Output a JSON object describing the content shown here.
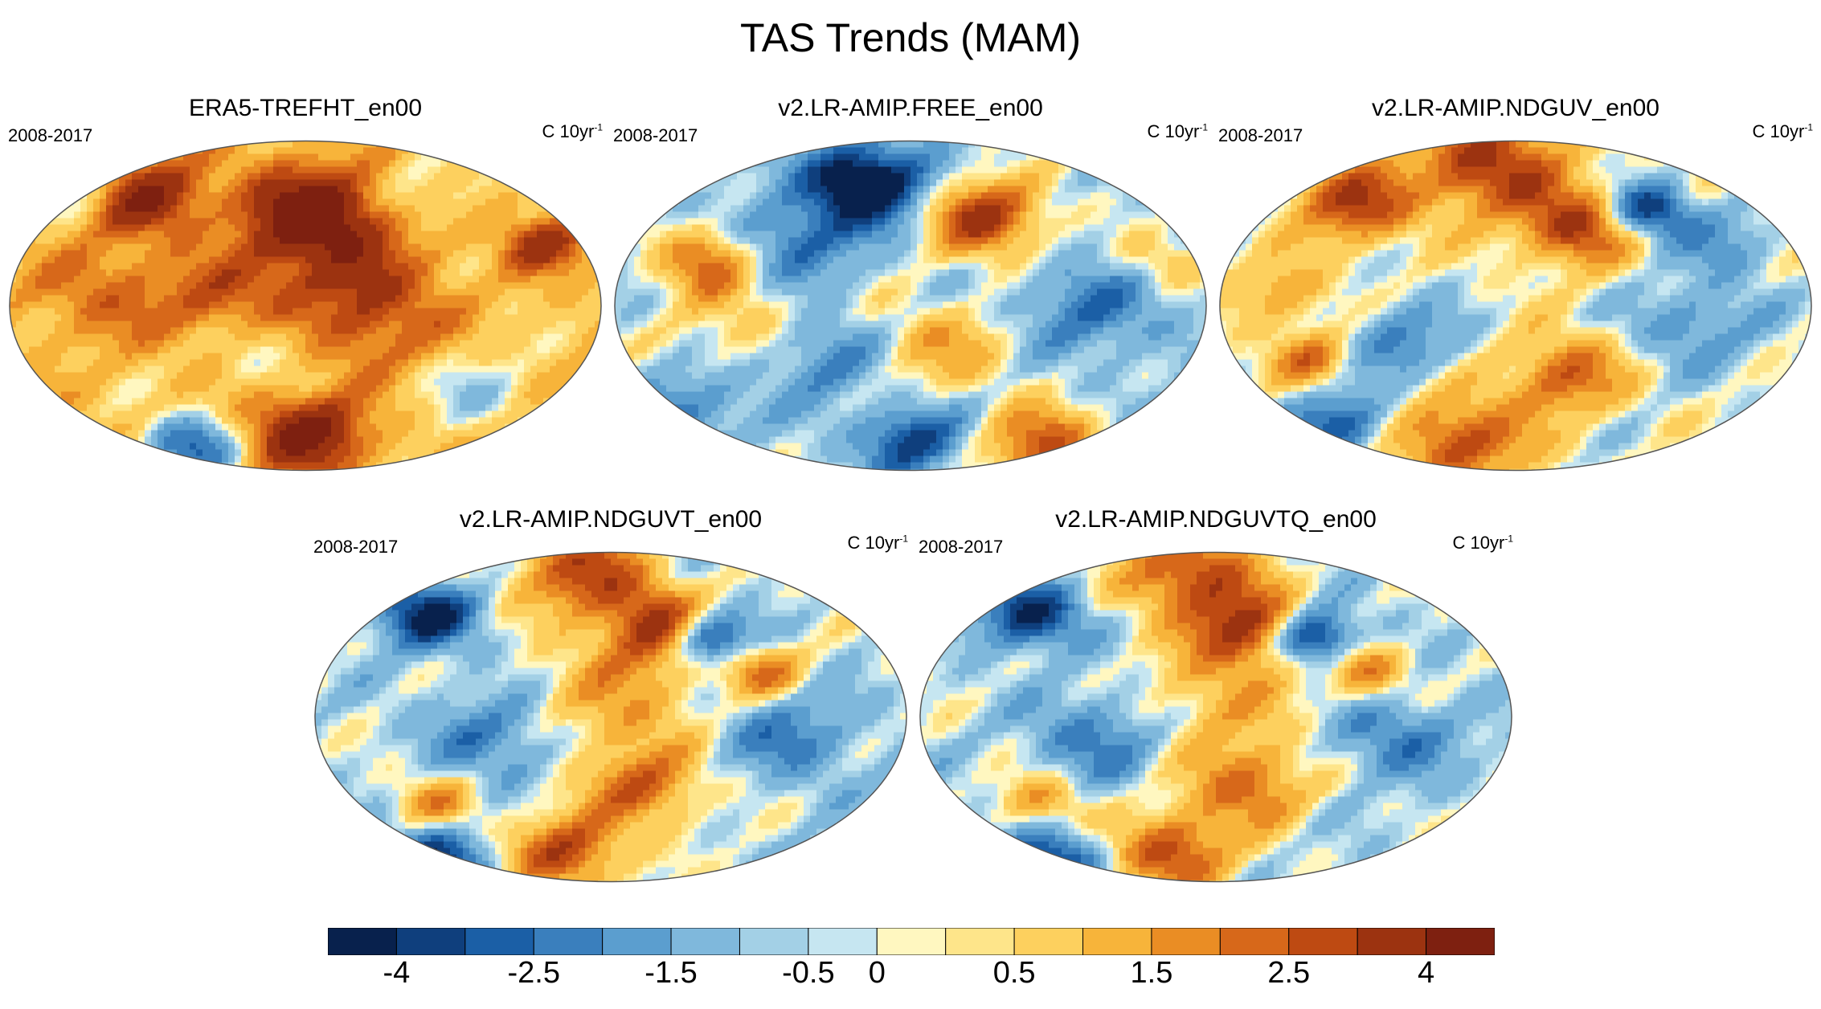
{
  "title": "TAS Trends (MAM)",
  "chart_data": {
    "type": "heatmap",
    "title": "TAS Trends (MAM)",
    "colorbar": {
      "colors": [
        "#08214d",
        "#0f3f7d",
        "#1b5fa6",
        "#3a7fbd",
        "#5b9ecf",
        "#7fb8dc",
        "#a3d0e6",
        "#c6e6f1",
        "#fff7c0",
        "#fee58a",
        "#fdd05e",
        "#f7b43a",
        "#ea8d24",
        "#d7681a",
        "#be4a12",
        "#9c3310",
        "#7e2010"
      ],
      "tick_labels": [
        "-4",
        "-2.5",
        "-1.5",
        "-0.5",
        "0",
        "0.5",
        "1.5",
        "2.5",
        "4"
      ],
      "levels": [
        -4,
        -3,
        -2.5,
        -2,
        -1.5,
        -1,
        -0.5,
        -0.25,
        0,
        0.25,
        0.5,
        1,
        1.5,
        2,
        2.5,
        3,
        4
      ]
    },
    "panels": [
      {
        "name": "ERA5-TREFHT_en00",
        "period": "2008-2017",
        "units": "C 10yr",
        "units_sup": "-1",
        "pattern": {
          "base": 0.9,
          "blobs": [
            [
              0.22,
              0.15,
              3.2,
              0.07
            ],
            [
              0.5,
              0.2,
              3.6,
              0.08
            ],
            [
              0.55,
              0.35,
              1.8,
              0.1
            ],
            [
              0.1,
              0.1,
              -2.5,
              0.06
            ],
            [
              0.3,
              0.92,
              -3,
              0.06
            ],
            [
              0.5,
              0.88,
              3.5,
              0.07
            ],
            [
              0.15,
              0.45,
              1.2,
              0.09
            ],
            [
              0.78,
              0.75,
              -1.2,
              0.08
            ],
            [
              0.42,
              0.62,
              -1.0,
              0.07
            ],
            [
              0.9,
              0.3,
              2.5,
              0.05
            ],
            [
              0.7,
              0.15,
              -1.0,
              0.06
            ],
            [
              0.35,
              0.48,
              1.5,
              0.08
            ],
            [
              0.62,
              0.55,
              1.6,
              0.09
            ]
          ]
        }
      },
      {
        "name": "v2.LR-AMIP.FREE_en00",
        "period": "2008-2017",
        "units": "C 10yr",
        "units_sup": "-1",
        "pattern": {
          "base": -0.3,
          "blobs": [
            [
              0.42,
              0.12,
              -4.2,
              0.07
            ],
            [
              0.62,
              0.22,
              3.5,
              0.07
            ],
            [
              0.15,
              0.35,
              2.5,
              0.06
            ],
            [
              0.3,
              0.3,
              -1.8,
              0.07
            ],
            [
              0.55,
              0.62,
              1.6,
              0.08
            ],
            [
              0.35,
              0.65,
              -1.5,
              0.07
            ],
            [
              0.72,
              0.92,
              3.0,
              0.07
            ],
            [
              0.5,
              0.9,
              -2.5,
              0.06
            ],
            [
              0.8,
              0.5,
              -1.6,
              0.08
            ],
            [
              0.2,
              0.55,
              1.0,
              0.09
            ],
            [
              0.92,
              0.35,
              1.2,
              0.05
            ],
            [
              0.12,
              0.8,
              -1.4,
              0.07
            ]
          ]
        }
      },
      {
        "name": "v2.LR-AMIP.NDGUV_en00",
        "period": "2008-2017",
        "units": "C 10yr",
        "units_sup": "-1",
        "pattern": {
          "base": 0.0,
          "blobs": [
            [
              0.45,
              0.06,
              3.2,
              0.09
            ],
            [
              0.22,
              0.18,
              3.0,
              0.07
            ],
            [
              0.6,
              0.25,
              3.0,
              0.07
            ],
            [
              0.72,
              0.2,
              -3.2,
              0.05
            ],
            [
              0.58,
              0.7,
              2.4,
              0.07
            ],
            [
              0.4,
              0.9,
              2.8,
              0.08
            ],
            [
              0.3,
              0.6,
              -1.6,
              0.07
            ],
            [
              0.8,
              0.55,
              -1.4,
              0.08
            ],
            [
              0.15,
              0.65,
              2.0,
              0.05
            ],
            [
              0.85,
              0.3,
              -1.2,
              0.06
            ],
            [
              0.1,
              0.45,
              1.5,
              0.06
            ],
            [
              0.2,
              0.85,
              -2.4,
              0.06
            ]
          ]
        }
      },
      {
        "name": "v2.LR-AMIP.NDGUVT_en00",
        "period": "2008-2017",
        "units": "C 10yr",
        "units_sup": "-1",
        "pattern": {
          "base": -0.2,
          "blobs": [
            [
              0.45,
              0.05,
              3.0,
              0.08
            ],
            [
              0.58,
              0.22,
              3.4,
              0.07
            ],
            [
              0.66,
              0.25,
              -3.6,
              0.05
            ],
            [
              0.18,
              0.18,
              -3.0,
              0.06
            ],
            [
              0.55,
              0.7,
              2.4,
              0.07
            ],
            [
              0.42,
              0.9,
              3.0,
              0.07
            ],
            [
              0.5,
              0.45,
              1.6,
              0.1
            ],
            [
              0.3,
              0.55,
              -1.6,
              0.08
            ],
            [
              0.8,
              0.55,
              -1.5,
              0.08
            ],
            [
              0.2,
              0.75,
              1.8,
              0.05
            ],
            [
              0.75,
              0.35,
              2.2,
              0.05
            ],
            [
              0.2,
              0.92,
              -2.6,
              0.06
            ]
          ]
        }
      },
      {
        "name": "v2.LR-AMIP.NDGUVTQ_en00",
        "period": "2008-2017",
        "units": "C 10yr",
        "units_sup": "-1",
        "pattern": {
          "base": -0.2,
          "blobs": [
            [
              0.45,
              0.05,
              3.0,
              0.08
            ],
            [
              0.55,
              0.22,
              3.2,
              0.07
            ],
            [
              0.66,
              0.25,
              -3.6,
              0.05
            ],
            [
              0.18,
              0.18,
              -3.0,
              0.06
            ],
            [
              0.55,
              0.7,
              2.4,
              0.07
            ],
            [
              0.42,
              0.9,
              3.0,
              0.07
            ],
            [
              0.5,
              0.45,
              1.4,
              0.1
            ],
            [
              0.3,
              0.55,
              -1.6,
              0.08
            ],
            [
              0.8,
              0.55,
              -1.5,
              0.08
            ],
            [
              0.2,
              0.75,
              1.8,
              0.05
            ],
            [
              0.75,
              0.35,
              2.2,
              0.05
            ],
            [
              0.22,
              0.92,
              -2.4,
              0.06
            ]
          ]
        }
      }
    ]
  }
}
